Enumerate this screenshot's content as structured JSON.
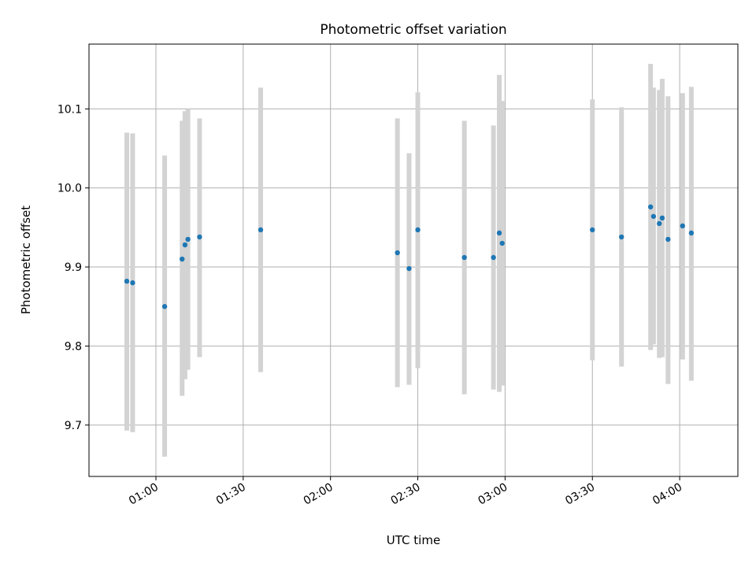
{
  "chart_data": {
    "type": "scatter",
    "title": "Photometric offset variation",
    "xlabel": "UTC time",
    "ylabel": "Photometric offset",
    "xlim": [
      "00:37",
      "04:20"
    ],
    "ylim": [
      9.635,
      10.182
    ],
    "grid": true,
    "x_ticks": [
      "01:00",
      "01:30",
      "02:00",
      "02:30",
      "03:00",
      "03:30",
      "04:00"
    ],
    "y_ticks": [
      9.7,
      9.8,
      9.9,
      10.0,
      10.1
    ],
    "y_tick_labels": [
      "9.7",
      "9.8",
      "9.9",
      "10.0",
      "10.1"
    ],
    "point_color": "#1f77b4",
    "errorbar_color": "#d3d3d3",
    "points": [
      {
        "time": "00:50",
        "value": 9.882,
        "low": 9.693,
        "high": 10.07
      },
      {
        "time": "00:52",
        "value": 9.88,
        "low": 9.691,
        "high": 10.069
      },
      {
        "time": "01:03",
        "value": 9.85,
        "low": 9.66,
        "high": 10.041
      },
      {
        "time": "01:09",
        "value": 9.91,
        "low": 9.737,
        "high": 10.085
      },
      {
        "time": "01:10",
        "value": 9.928,
        "low": 9.758,
        "high": 10.097
      },
      {
        "time": "01:11",
        "value": 9.935,
        "low": 9.77,
        "high": 10.1
      },
      {
        "time": "01:15",
        "value": 9.938,
        "low": 9.786,
        "high": 10.088
      },
      {
        "time": "01:36",
        "value": 9.947,
        "low": 9.767,
        "high": 10.127
      },
      {
        "time": "02:23",
        "value": 9.918,
        "low": 9.748,
        "high": 10.088
      },
      {
        "time": "02:27",
        "value": 9.898,
        "low": 9.751,
        "high": 10.044
      },
      {
        "time": "02:30",
        "value": 9.947,
        "low": 9.772,
        "high": 10.121
      },
      {
        "time": "02:46",
        "value": 9.912,
        "low": 9.739,
        "high": 10.085
      },
      {
        "time": "02:56",
        "value": 9.912,
        "low": 9.745,
        "high": 10.079
      },
      {
        "time": "02:58",
        "value": 9.943,
        "low": 9.742,
        "high": 10.143
      },
      {
        "time": "02:59",
        "value": 9.93,
        "low": 9.75,
        "high": 10.11
      },
      {
        "time": "03:30",
        "value": 9.947,
        "low": 9.782,
        "high": 10.112
      },
      {
        "time": "03:40",
        "value": 9.938,
        "low": 9.774,
        "high": 10.102
      },
      {
        "time": "03:50",
        "value": 9.976,
        "low": 9.795,
        "high": 10.157
      },
      {
        "time": "03:51",
        "value": 9.964,
        "low": 9.802,
        "high": 10.127
      },
      {
        "time": "03:53",
        "value": 9.955,
        "low": 9.785,
        "high": 10.124
      },
      {
        "time": "03:54",
        "value": 9.962,
        "low": 9.786,
        "high": 10.138
      },
      {
        "time": "03:56",
        "value": 9.935,
        "low": 9.752,
        "high": 10.116
      },
      {
        "time": "04:01",
        "value": 9.952,
        "low": 9.783,
        "high": 10.12
      },
      {
        "time": "04:04",
        "value": 9.943,
        "low": 9.756,
        "high": 10.128
      }
    ]
  }
}
